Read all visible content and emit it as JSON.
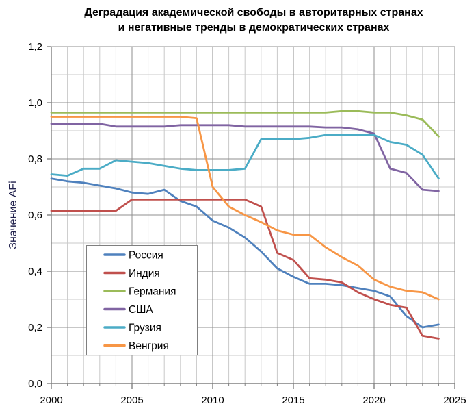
{
  "title": {
    "line1": "Деградация академической свободы в авторитарных странах",
    "line2": "и негативные тренды в демократических странах"
  },
  "y_axis": {
    "label": "Значение AFi",
    "tick_labels": [
      "0,0",
      "0,2",
      "0,4",
      "0,6",
      "0,8",
      "1,0",
      "1,2"
    ],
    "tick_values": [
      0,
      0.2,
      0.4,
      0.6,
      0.8,
      1.0,
      1.2
    ],
    "minor_step": 0.1,
    "min": 0,
    "max": 1.2
  },
  "x_axis": {
    "tick_labels": [
      "2000",
      "2005",
      "2010",
      "2015",
      "2020",
      "2025"
    ],
    "tick_values": [
      2000,
      2005,
      2010,
      2015,
      2020,
      2025
    ],
    "minor_step": 1,
    "min": 2000,
    "max": 2025
  },
  "chart_data": {
    "type": "line",
    "title": "Деградация академической свободы в авторитарных странах и негативные тренды в демократических странах",
    "xlabel": "",
    "ylabel": "Значение AFi",
    "xlim": [
      2000,
      2025
    ],
    "ylim": [
      0,
      1.2
    ],
    "grid": true,
    "legend_position": "inside bottom-left",
    "x": [
      2000,
      2001,
      2002,
      2003,
      2004,
      2005,
      2006,
      2007,
      2008,
      2009,
      2010,
      2011,
      2012,
      2013,
      2014,
      2015,
      2016,
      2017,
      2018,
      2019,
      2020,
      2021,
      2022,
      2023,
      2024
    ],
    "series": [
      {
        "name": "Россия",
        "slug": "russia",
        "color": "#4F81BD",
        "values": [
          0.73,
          0.72,
          0.715,
          0.705,
          0.695,
          0.68,
          0.675,
          0.69,
          0.65,
          0.63,
          0.58,
          0.555,
          0.52,
          0.47,
          0.41,
          0.38,
          0.355,
          0.355,
          0.35,
          0.34,
          0.33,
          0.31,
          0.24,
          0.2,
          0.21
        ]
      },
      {
        "name": "Индия",
        "slug": "india",
        "color": "#C0504D",
        "values": [
          0.615,
          0.615,
          0.615,
          0.615,
          0.615,
          0.655,
          0.655,
          0.655,
          0.655,
          0.655,
          0.655,
          0.655,
          0.655,
          0.63,
          0.465,
          0.44,
          0.375,
          0.37,
          0.36,
          0.325,
          0.3,
          0.28,
          0.27,
          0.17,
          0.16
        ]
      },
      {
        "name": "Германия",
        "slug": "germany",
        "color": "#9BBB59",
        "values": [
          0.965,
          0.965,
          0.965,
          0.965,
          0.965,
          0.965,
          0.965,
          0.965,
          0.965,
          0.965,
          0.965,
          0.965,
          0.965,
          0.965,
          0.965,
          0.965,
          0.965,
          0.965,
          0.97,
          0.97,
          0.965,
          0.965,
          0.955,
          0.94,
          0.88
        ]
      },
      {
        "name": "США",
        "slug": "usa",
        "color": "#8064A2",
        "values": [
          0.925,
          0.925,
          0.925,
          0.925,
          0.915,
          0.915,
          0.915,
          0.915,
          0.92,
          0.92,
          0.92,
          0.92,
          0.915,
          0.915,
          0.915,
          0.915,
          0.915,
          0.912,
          0.912,
          0.905,
          0.89,
          0.765,
          0.75,
          0.69,
          0.685
        ]
      },
      {
        "name": "Грузия",
        "slug": "georgia",
        "color": "#4BACC6",
        "values": [
          0.745,
          0.74,
          0.765,
          0.765,
          0.795,
          0.79,
          0.785,
          0.775,
          0.765,
          0.76,
          0.76,
          0.76,
          0.765,
          0.87,
          0.87,
          0.87,
          0.875,
          0.885,
          0.885,
          0.885,
          0.885,
          0.86,
          0.85,
          0.815,
          0.73
        ]
      },
      {
        "name": "Венгрия",
        "slug": "hungary",
        "color": "#F79646",
        "values": [
          0.95,
          0.95,
          0.95,
          0.95,
          0.95,
          0.95,
          0.95,
          0.95,
          0.95,
          0.945,
          0.7,
          0.63,
          0.6,
          0.575,
          0.545,
          0.53,
          0.53,
          0.485,
          0.45,
          0.42,
          0.37,
          0.345,
          0.33,
          0.325,
          0.3
        ]
      }
    ]
  },
  "style": {
    "grid_minor_color": "#C9C9C9",
    "grid_major_color": "#8F8F8F",
    "axis_color": "#808080",
    "text_color": "#000000",
    "legend_border_color": "#7F7F7F",
    "legend_fill_color": "#FFFFFF"
  }
}
